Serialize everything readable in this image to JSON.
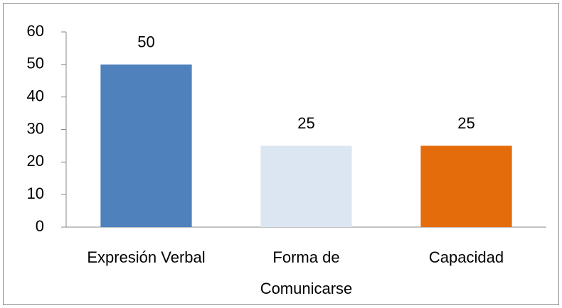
{
  "chart_data": {
    "type": "bar",
    "categories": [
      "Expresión Verbal",
      "Forma de Comunicarse",
      "Capacidad"
    ],
    "values": [
      50,
      25,
      25
    ],
    "colors": [
      "#4f81bd",
      "#dce6f2",
      "#e46c0a"
    ],
    "ylim": [
      0,
      60
    ],
    "yticks": [
      0,
      10,
      20,
      30,
      40,
      50,
      60
    ],
    "grid": false
  }
}
